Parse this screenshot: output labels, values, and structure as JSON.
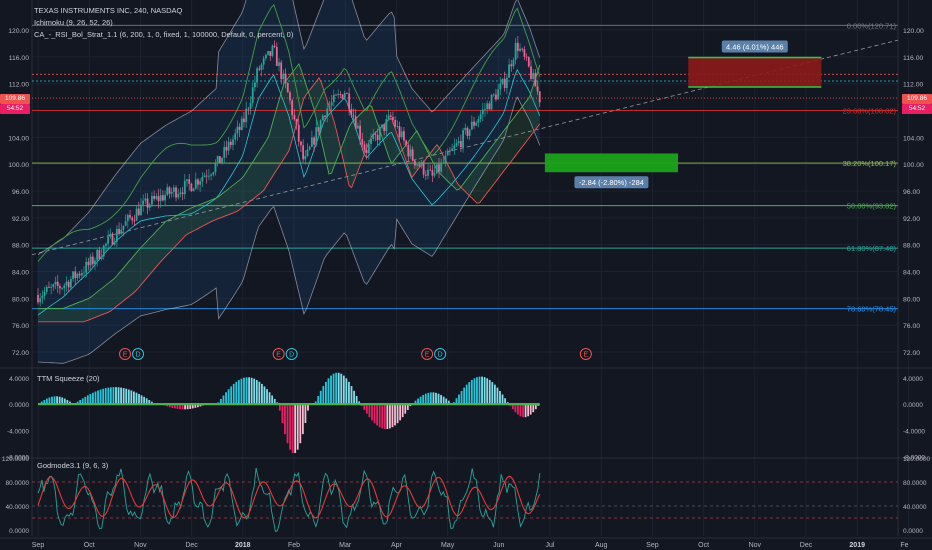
{
  "header": {
    "symbol_title": "TEXAS INSTRUMENTS INC, 240, NASDAQ",
    "indicator_1": "Ichimoku (9, 26, 52, 26)",
    "indicator_2": "CA_-_RSI_Bol_Strat_1.1 (6, 200, 1, 0, fixed, 1, 100000, Default, 0, percent, 0)"
  },
  "price_tags": {
    "left_top": "109.86",
    "left_bottom": "54:52",
    "right_top": "109.86",
    "right_bottom": "54:52"
  },
  "panes": {
    "ttm_label": "TTM Squeeze (20)",
    "godmode_label": "Godmode3.1 (9, 6, 3)"
  },
  "colors": {
    "background": "#131722",
    "grid": "#1e2230",
    "up_candle": "#26a69a",
    "down_candle": "#ef5350",
    "fib_red": "#d32f2f",
    "fib_green": "#4caf50",
    "fib_teal": "#26a69a",
    "fib_blue": "#2196f3",
    "squeeze_teal": "#26c6da",
    "squeeze_pink": "#e91e63",
    "long_box": "#1aa31a",
    "short_box": "#8c1a1a"
  },
  "chart_data": [
    {
      "type": "candlestick",
      "title": "TEXAS INSTRUMENTS INC, 240, NASDAQ",
      "x_ticks": [
        "Sep",
        "Oct",
        "Nov",
        "Dec",
        "2018",
        "Feb",
        "Mar",
        "Apr",
        "May",
        "Jun",
        "Jul",
        "Aug",
        "Sep",
        "Oct",
        "Nov",
        "Dec",
        "2019",
        "Fe"
      ],
      "y_ticks": [
        "120.00",
        "116.00",
        "112.00",
        "108.00",
        "104.00",
        "100.00",
        "96.00",
        "92.00",
        "88.00",
        "84.00",
        "80.00",
        "76.00",
        "72.00"
      ],
      "ylim": [
        70.5,
        121.5
      ],
      "last_price": 109.86,
      "price_path": [
        {
          "t": 0.0,
          "p": 80.5
        },
        {
          "t": 0.5,
          "p": 82.0
        },
        {
          "t": 1.0,
          "p": 85.0
        },
        {
          "t": 1.5,
          "p": 89.5
        },
        {
          "t": 2.0,
          "p": 93.5
        },
        {
          "t": 2.5,
          "p": 95.5
        },
        {
          "t": 3.0,
          "p": 97.0
        },
        {
          "t": 3.5,
          "p": 100.0
        },
        {
          "t": 4.0,
          "p": 106.0
        },
        {
          "t": 4.3,
          "p": 114.0
        },
        {
          "t": 4.6,
          "p": 117.0
        },
        {
          "t": 4.9,
          "p": 110.0
        },
        {
          "t": 5.2,
          "p": 100.0
        },
        {
          "t": 5.6,
          "p": 108.0
        },
        {
          "t": 6.0,
          "p": 111.0
        },
        {
          "t": 6.4,
          "p": 102.0
        },
        {
          "t": 6.9,
          "p": 107.0
        },
        {
          "t": 7.3,
          "p": 101.0
        },
        {
          "t": 7.7,
          "p": 98.0
        },
        {
          "t": 8.2,
          "p": 103.0
        },
        {
          "t": 8.7,
          "p": 108.0
        },
        {
          "t": 9.1,
          "p": 112.0
        },
        {
          "t": 9.35,
          "p": 118.0
        },
        {
          "t": 9.6,
          "p": 114.0
        },
        {
          "t": 9.8,
          "p": 109.86
        }
      ],
      "fib_levels": [
        {
          "label": "0.00%(120.71)",
          "value": 120.71,
          "color": "#787b86"
        },
        {
          "label": "23.60%(108.02)",
          "value": 108.02,
          "color": "#d32f2f"
        },
        {
          "label": "38.20%(100.17)",
          "value": 100.17,
          "color": "#8bc34a"
        },
        {
          "label": "50.00%(93.82)",
          "value": 93.82,
          "color": "#4caf50"
        },
        {
          "label": "61.80%(87.48)",
          "value": 87.48,
          "color": "#26a69a"
        },
        {
          "label": "78.60%(78.45)",
          "value": 78.45,
          "color": "#2196f3"
        }
      ],
      "positions": [
        {
          "type": "short",
          "label": "4.46 (4.01%) 446",
          "entry": 111.5,
          "stop": 115.9
        },
        {
          "type": "long",
          "label": "-2.84 (-2.80%) -284",
          "entry": 101.6,
          "target": 98.8
        }
      ],
      "event_markers": [
        {
          "t": 1.7,
          "labels": [
            "E",
            "D"
          ]
        },
        {
          "t": 4.7,
          "labels": [
            "E",
            "D"
          ]
        },
        {
          "t": 7.6,
          "labels": [
            "E",
            "D"
          ]
        },
        {
          "t": 10.7,
          "labels": [
            "E"
          ]
        }
      ]
    },
    {
      "type": "bar",
      "title": "TTM Squeeze (20)",
      "y_ticks": [
        "4.0000",
        "0.0000",
        "-4.0000",
        "-8.0000"
      ],
      "ylim": [
        -8.2,
        5.2
      ],
      "humps": [
        {
          "start": 0.0,
          "end": 0.7,
          "peak": 1.2
        },
        {
          "start": 0.7,
          "end": 2.3,
          "peak": 2.6
        },
        {
          "start": 2.4,
          "end": 3.3,
          "peak": -0.8
        },
        {
          "start": 3.5,
          "end": 4.7,
          "peak": 4.1
        },
        {
          "start": 4.7,
          "end": 5.3,
          "peak": -7.5
        },
        {
          "start": 5.4,
          "end": 6.3,
          "peak": 4.8
        },
        {
          "start": 6.3,
          "end": 7.3,
          "peak": -3.8
        },
        {
          "start": 7.3,
          "end": 8.1,
          "peak": 1.8
        },
        {
          "start": 8.1,
          "end": 9.2,
          "peak": 4.2
        },
        {
          "start": 9.2,
          "end": 9.8,
          "peak": -2.0
        }
      ]
    },
    {
      "type": "line",
      "title": "Godmode3.1 (9, 6, 3)",
      "y_ticks": [
        "120.0000",
        "80.0000",
        "40.0000",
        "0.0000"
      ],
      "ylim": [
        -10,
        120
      ],
      "levels": [
        80,
        40,
        20
      ]
    }
  ]
}
